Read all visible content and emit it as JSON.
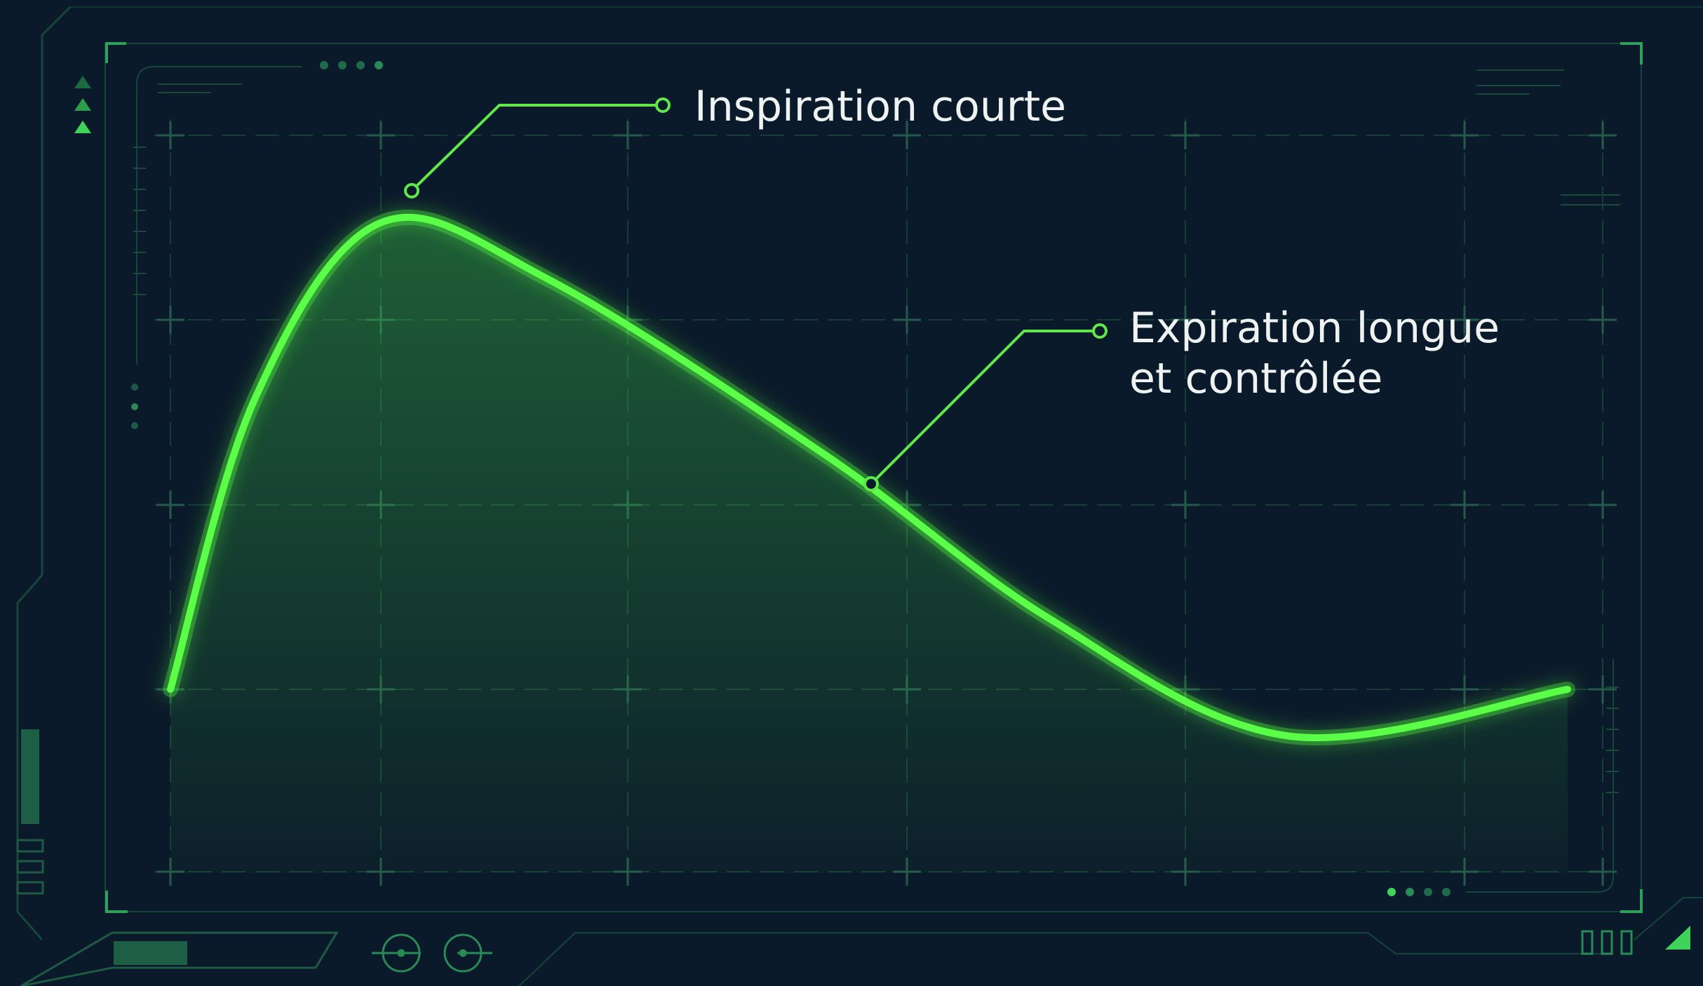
{
  "colors": {
    "background": "#0b1a2a",
    "accent": "#4cf03c",
    "frame": "#1f5a45",
    "text": "#eef3f2"
  },
  "annotations": {
    "inspiration": "Inspiration courte",
    "expiration_line1": "Expiration longue",
    "expiration_line2": "et contrôlée"
  },
  "chart_data": {
    "type": "line",
    "title": "",
    "xlabel": "",
    "ylabel": "",
    "grid": true,
    "series": [
      {
        "points": [
          [
            0,
            0
          ],
          [
            0.06,
            0.62
          ],
          [
            0.15,
            1.0
          ],
          [
            0.27,
            0.88
          ],
          [
            0.47,
            0.5
          ],
          [
            0.63,
            0.15
          ],
          [
            0.8,
            -0.1
          ],
          [
            1.0,
            0.0
          ]
        ]
      }
    ],
    "annotations": [
      {
        "text": "Inspiration courte",
        "x": 0.17,
        "y": 1.0
      },
      {
        "text": "Expiration longue et contrôlée",
        "x": 0.5,
        "y": 0.45
      }
    ],
    "xlim": [
      0,
      1
    ],
    "ylim": [
      -0.5,
      1.2
    ]
  }
}
